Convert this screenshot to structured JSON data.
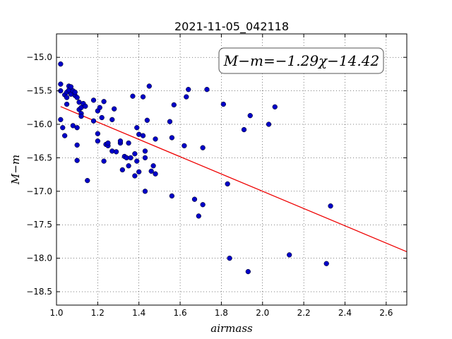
{
  "chart_data": {
    "type": "scatter",
    "title": "2021-11-05_042118",
    "xlabel": "airmass",
    "ylabel": "M−m",
    "xlim": [
      1.0,
      2.7
    ],
    "ylim": [
      -18.7,
      -14.65
    ],
    "y_inverted": true,
    "grid": true,
    "x_ticks": [
      1.0,
      1.2,
      1.4,
      1.6,
      1.8,
      2.0,
      2.2,
      2.4,
      2.6
    ],
    "x_tick_labels": [
      "1.0",
      "1.2",
      "1.4",
      "1.6",
      "1.8",
      "2.0",
      "2.2",
      "2.4",
      "2.6"
    ],
    "y_ticks": [
      -15.0,
      -15.5,
      -16.0,
      -16.5,
      -17.0,
      -17.5,
      -18.0,
      -18.5
    ],
    "y_tick_labels": [
      "−15.0",
      "−15.5",
      "−16.0",
      "−16.5",
      "−17.0",
      "−17.5",
      "−18.0",
      "−18.5"
    ],
    "annotation": "M−m=−1.29χ−14.42",
    "fit": {
      "slope": -1.29,
      "intercept": -14.42,
      "color": "#ee0000"
    },
    "point_color": "#0000c8",
    "points": [
      [
        1.02,
        -15.1
      ],
      [
        1.02,
        -15.4
      ],
      [
        1.02,
        -15.5
      ],
      [
        1.02,
        -15.93
      ],
      [
        1.03,
        -16.05
      ],
      [
        1.04,
        -16.17
      ],
      [
        1.04,
        -15.56
      ],
      [
        1.05,
        -15.6
      ],
      [
        1.05,
        -15.52
      ],
      [
        1.05,
        -15.7
      ],
      [
        1.06,
        -15.43
      ],
      [
        1.06,
        -15.49
      ],
      [
        1.07,
        -15.44
      ],
      [
        1.07,
        -15.55
      ],
      [
        1.08,
        -15.5
      ],
      [
        1.08,
        -16.02
      ],
      [
        1.09,
        -15.57
      ],
      [
        1.09,
        -15.52
      ],
      [
        1.1,
        -16.05
      ],
      [
        1.1,
        -15.6
      ],
      [
        1.1,
        -16.31
      ],
      [
        1.1,
        -16.54
      ],
      [
        1.11,
        -15.67
      ],
      [
        1.11,
        -15.78
      ],
      [
        1.12,
        -15.75
      ],
      [
        1.12,
        -15.84
      ],
      [
        1.12,
        -15.88
      ],
      [
        1.13,
        -15.69
      ],
      [
        1.14,
        -15.73
      ],
      [
        1.15,
        -16.84
      ],
      [
        1.18,
        -15.95
      ],
      [
        1.18,
        -15.64
      ],
      [
        1.2,
        -16.14
      ],
      [
        1.2,
        -16.25
      ],
      [
        1.2,
        -15.8
      ],
      [
        1.21,
        -15.75
      ],
      [
        1.22,
        -15.9
      ],
      [
        1.23,
        -15.66
      ],
      [
        1.23,
        -16.55
      ],
      [
        1.24,
        -16.3
      ],
      [
        1.25,
        -16.32
      ],
      [
        1.25,
        -16.28
      ],
      [
        1.27,
        -16.4
      ],
      [
        1.27,
        -15.93
      ],
      [
        1.28,
        -15.77
      ],
      [
        1.29,
        -16.41
      ],
      [
        1.31,
        -16.28
      ],
      [
        1.31,
        -16.25
      ],
      [
        1.32,
        -16.68
      ],
      [
        1.33,
        -16.48
      ],
      [
        1.34,
        -16.5
      ],
      [
        1.35,
        -16.62
      ],
      [
        1.35,
        -16.28
      ],
      [
        1.36,
        -16.5
      ],
      [
        1.37,
        -15.58
      ],
      [
        1.38,
        -16.44
      ],
      [
        1.38,
        -16.77
      ],
      [
        1.39,
        -16.05
      ],
      [
        1.39,
        -16.55
      ],
      [
        1.4,
        -16.71
      ],
      [
        1.4,
        -16.15
      ],
      [
        1.42,
        -15.59
      ],
      [
        1.42,
        -16.17
      ],
      [
        1.43,
        -16.4
      ],
      [
        1.43,
        -16.5
      ],
      [
        1.43,
        -17.0
      ],
      [
        1.44,
        -15.94
      ],
      [
        1.45,
        -15.43
      ],
      [
        1.46,
        -16.7
      ],
      [
        1.47,
        -16.62
      ],
      [
        1.48,
        -16.74
      ],
      [
        1.48,
        -16.22
      ],
      [
        1.55,
        -15.96
      ],
      [
        1.56,
        -16.2
      ],
      [
        1.56,
        -17.07
      ],
      [
        1.57,
        -15.71
      ],
      [
        1.62,
        -16.32
      ],
      [
        1.63,
        -15.59
      ],
      [
        1.64,
        -15.48
      ],
      [
        1.67,
        -17.12
      ],
      [
        1.69,
        -17.37
      ],
      [
        1.71,
        -17.2
      ],
      [
        1.71,
        -16.35
      ],
      [
        1.73,
        -15.48
      ],
      [
        1.81,
        -15.7
      ],
      [
        1.83,
        -16.89
      ],
      [
        1.84,
        -18.0
      ],
      [
        1.91,
        -16.08
      ],
      [
        1.93,
        -18.2
      ],
      [
        1.94,
        -15.87
      ],
      [
        2.03,
        -16.0
      ],
      [
        2.06,
        -15.74
      ],
      [
        2.13,
        -17.95
      ],
      [
        2.31,
        -18.08
      ],
      [
        2.33,
        -17.22
      ]
    ]
  }
}
